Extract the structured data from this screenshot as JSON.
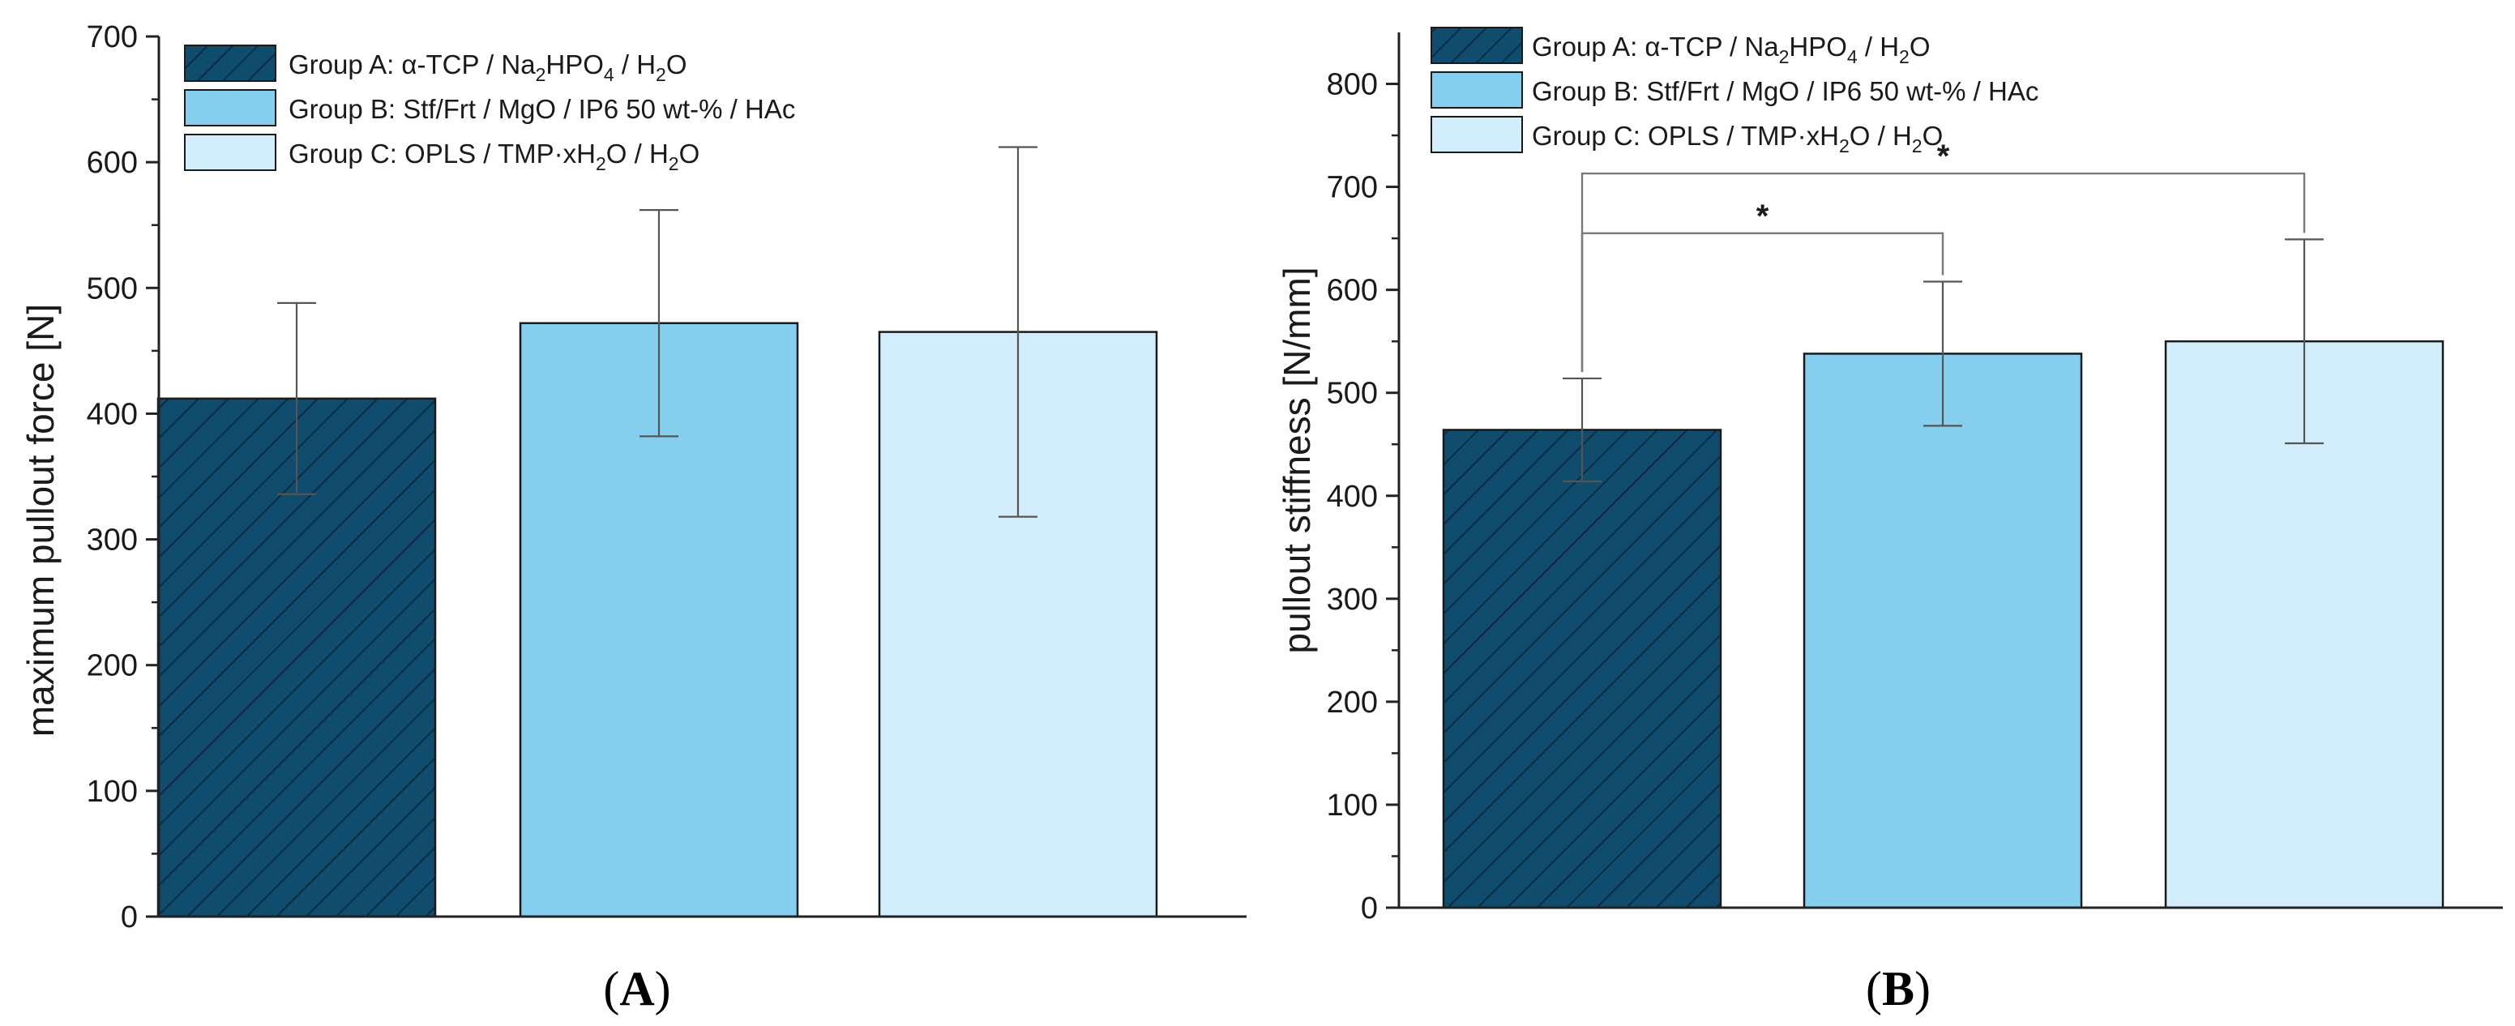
{
  "colors": {
    "group_a": "#0f4c6d",
    "group_b": "#86ceee",
    "group_c": "#d2eefc",
    "hatch": "#0a2c40",
    "axis": "#222222",
    "error_bar": "#555555",
    "bracket": "#7a7a7a"
  },
  "panels": {
    "a": {
      "label_open": "(",
      "label_letter": "A",
      "label_close": ")"
    },
    "b": {
      "label_open": "(",
      "label_letter": "B",
      "label_close": ")"
    }
  },
  "legend_entries": [
    {
      "prefix": "Group A: α-TCP / Na",
      "sub1": "2",
      "mid1": "HPO",
      "sub2": "4",
      "mid2": " / H",
      "sub3": "2",
      "suffix": "O"
    },
    {
      "text": "Group B: Stf/Frt / MgO / IP6 50 wt-% / HAc"
    },
    {
      "prefix": "Group C: OPLS / TMP·xH",
      "sub1": "2",
      "mid1": "O / H",
      "sub2": "2",
      "suffix": "O"
    }
  ],
  "chart_data": [
    {
      "type": "bar",
      "panel": "A",
      "ylabel": "maximum pullout force [N]",
      "xlabel": "",
      "ylim": [
        0,
        700
      ],
      "yticks": [
        0,
        100,
        200,
        300,
        400,
        500,
        600,
        700
      ],
      "grid": false,
      "legend": "top-left",
      "categories": [
        "Group A",
        "Group B",
        "Group C"
      ],
      "values": [
        412,
        472,
        465
      ],
      "errors": [
        76,
        90,
        147
      ],
      "significance": []
    },
    {
      "type": "bar",
      "panel": "B",
      "ylabel": "pullout stiffness [N/mm]",
      "xlabel": "",
      "ylim": [
        0,
        850
      ],
      "yticks": [
        0,
        100,
        200,
        300,
        400,
        500,
        600,
        700,
        800
      ],
      "grid": false,
      "legend": "top-left",
      "categories": [
        "Group A",
        "Group B",
        "Group C"
      ],
      "values": [
        464,
        538,
        550
      ],
      "errors": [
        50,
        70,
        99
      ],
      "significance": [
        {
          "from": 0,
          "to": 1,
          "label": "*",
          "level": 655
        },
        {
          "from": 0,
          "to": 2,
          "label": "*",
          "level": 713
        }
      ]
    }
  ]
}
